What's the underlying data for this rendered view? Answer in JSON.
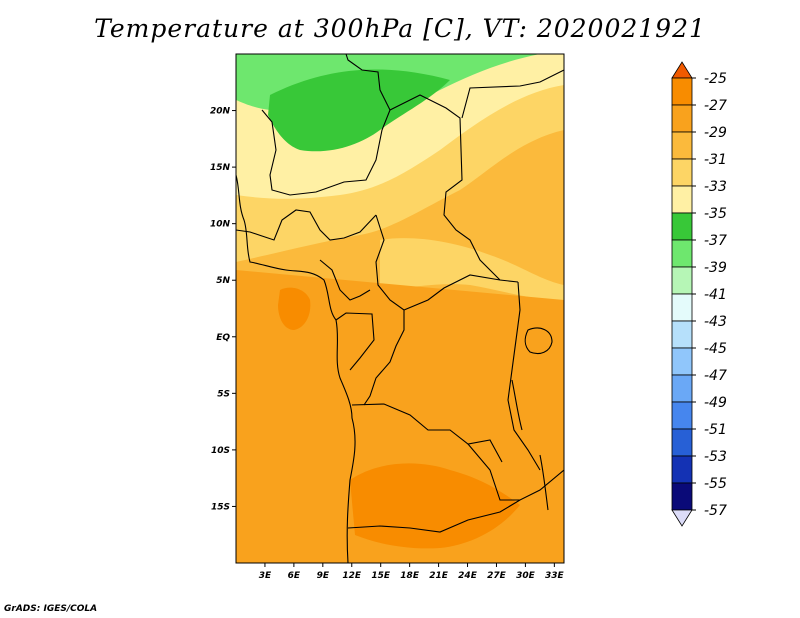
{
  "title": "Temperature at 300hPa [C], VT: 2020021921",
  "credit": "GrADS: IGES/COLA",
  "map": {
    "region": "Central/West Africa",
    "lon_range": [
      0,
      34
    ],
    "lat_range": [
      -20,
      25
    ],
    "lon_ticks": [
      {
        "value": 3,
        "label": "3E"
      },
      {
        "value": 6,
        "label": "6E"
      },
      {
        "value": 9,
        "label": "9E"
      },
      {
        "value": 12,
        "label": "12E"
      },
      {
        "value": 15,
        "label": "15E"
      },
      {
        "value": 18,
        "label": "18E"
      },
      {
        "value": 21,
        "label": "21E"
      },
      {
        "value": 24,
        "label": "24E"
      },
      {
        "value": 27,
        "label": "27E"
      },
      {
        "value": 30,
        "label": "30E"
      },
      {
        "value": 33,
        "label": "33E"
      }
    ],
    "lat_ticks": [
      {
        "value": 20,
        "label": "20N"
      },
      {
        "value": 15,
        "label": "15N"
      },
      {
        "value": 10,
        "label": "10N"
      },
      {
        "value": 5,
        "label": "5N"
      },
      {
        "value": 0,
        "label": "EQ"
      },
      {
        "value": -5,
        "label": "5S"
      },
      {
        "value": -10,
        "label": "10S"
      },
      {
        "value": -15,
        "label": "15S"
      }
    ]
  },
  "colorbar": {
    "labels": [
      "-25",
      "-27",
      "-29",
      "-31",
      "-33",
      "-35",
      "-37",
      "-39",
      "-41",
      "-43",
      "-45",
      "-47",
      "-49",
      "-51",
      "-53",
      "-55",
      "-57"
    ],
    "colors": [
      "#f05a00",
      "#f88c00",
      "#f9a21d",
      "#fbba3c",
      "#fdd565",
      "#fff0a4",
      "#38c838",
      "#6ee76e",
      "#b6f6b6",
      "#e4fbfb",
      "#b6e0fb",
      "#90c6fb",
      "#6aa8f6",
      "#4686ee",
      "#2760d6",
      "#1432b4",
      "#0a0a78",
      "#dcdcf8"
    ]
  },
  "field": {
    "colors": {
      "t31": "#fbba3c",
      "t29": "#f9a21d",
      "t27": "#f88c00",
      "t33": "#fdd565",
      "t35": "#fff0a4",
      "t37": "#38c838",
      "t39": "#6ee76e"
    }
  }
}
